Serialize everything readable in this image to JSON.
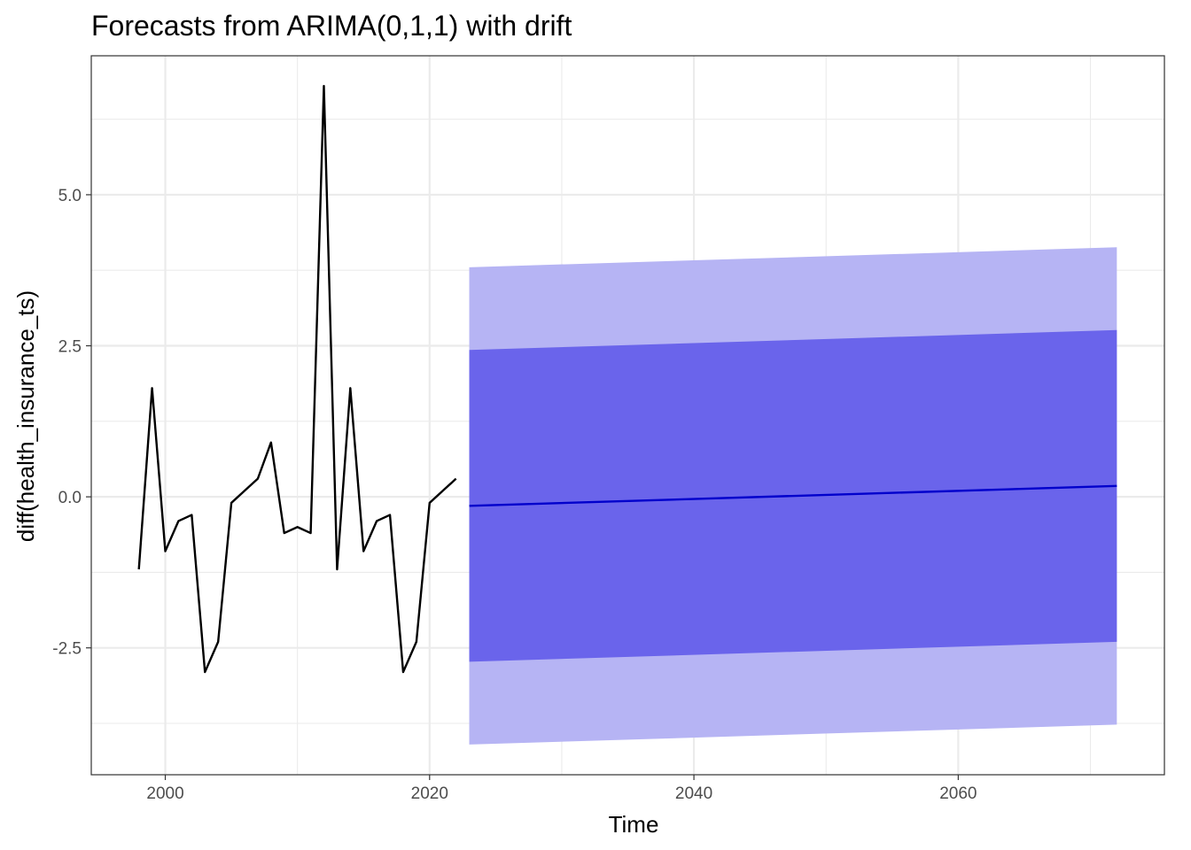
{
  "chart_data": {
    "type": "line",
    "title": "Forecasts from ARIMA(0,1,1) with drift",
    "xlabel": "Time",
    "ylabel": "diff(health_insurance_ts)",
    "xlim": [
      1994.4,
      2075.6
    ],
    "ylim": [
      -4.6,
      7.3
    ],
    "x_ticks": [
      2000,
      2020,
      2040,
      2060
    ],
    "x_tick_labels": [
      "2000",
      "2020",
      "2040",
      "2060"
    ],
    "y_ticks": [
      -2.5,
      0.0,
      2.5,
      5.0
    ],
    "y_tick_labels": [
      "-2.5",
      "0.0",
      "2.5",
      "5.0"
    ],
    "grid": true,
    "colors": {
      "history": "#000000",
      "forecast": "#0000cc",
      "band_80": "#6a64eb",
      "band_95": "#b6b4f4",
      "grid": "#ebebeb",
      "panel_border": "#333333"
    },
    "history": {
      "x": [
        1998,
        1999,
        2000,
        2001,
        2002,
        2003,
        2004,
        2005,
        2006,
        2007,
        2008,
        2009,
        2010,
        2011,
        2012,
        2013,
        2014,
        2015,
        2016,
        2017,
        2018,
        2019,
        2020,
        2021,
        2022
      ],
      "y": [
        -1.2,
        1.8,
        -0.9,
        -0.4,
        -0.3,
        -2.9,
        -2.4,
        -0.1,
        0.1,
        0.3,
        0.9,
        -0.6,
        -0.5,
        -0.6,
        6.8,
        -1.2,
        1.8,
        -0.9,
        -0.4,
        -0.3,
        -2.9,
        -2.4,
        -0.1,
        0.1,
        0.3
      ]
    },
    "forecast": {
      "x": [
        2023,
        2072
      ],
      "mean": [
        -0.15,
        0.18
      ],
      "lo80": [
        -2.73,
        -2.4
      ],
      "hi80": [
        2.43,
        2.76
      ],
      "lo95": [
        -4.1,
        -3.77
      ],
      "hi95": [
        3.8,
        4.13
      ]
    }
  }
}
